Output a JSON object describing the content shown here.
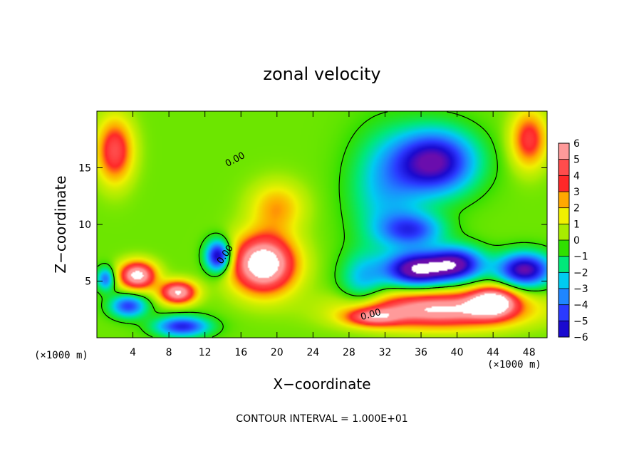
{
  "chart_data": {
    "type": "heatmap",
    "title": "zonal velocity",
    "xlabel": "X−coordinate",
    "ylabel": "Z−coordinate",
    "x_unit_label": "(×1000 m)",
    "y_unit_label": "(×1000 m)",
    "xlim": [
      0,
      50
    ],
    "ylim": [
      0,
      20
    ],
    "x_ticks": [
      4,
      8,
      12,
      16,
      20,
      24,
      28,
      32,
      36,
      40,
      44,
      48
    ],
    "y_ticks": [
      5,
      10,
      15
    ],
    "note": "CONTOUR INTERVAL = 1.000E+01",
    "contour_labels": [
      "0.00",
      "0.00",
      "0.00"
    ],
    "colorbar": {
      "ticks": [
        "6",
        "5",
        "4",
        "3",
        "2",
        "1",
        "0",
        "−1",
        "−2",
        "−3",
        "−4",
        "−5",
        "−6"
      ],
      "vmin": -6,
      "vmax": 6
    },
    "features": [
      {
        "x": 18.5,
        "y": 6.5,
        "value": 8.0,
        "size": [
          3.5,
          2.5
        ]
      },
      {
        "x": 4.5,
        "y": 5.5,
        "value": 7.0,
        "size": [
          2.0,
          1.2
        ]
      },
      {
        "x": 9.0,
        "y": 4.0,
        "value": 6.5,
        "size": [
          2.0,
          1.0
        ]
      },
      {
        "x": 2.0,
        "y": 16.5,
        "value": 4.5,
        "size": [
          2.0,
          2.8
        ]
      },
      {
        "x": 48.0,
        "y": 17.5,
        "value": 4.0,
        "size": [
          2.0,
          2.5
        ]
      },
      {
        "x": 20.0,
        "y": 11.5,
        "value": 2.5,
        "size": [
          3.0,
          2.2
        ]
      },
      {
        "x": 38.0,
        "y": 2.5,
        "value": 6.5,
        "size": [
          9.0,
          1.6
        ]
      },
      {
        "x": 30.5,
        "y": 1.8,
        "value": 4.0,
        "size": [
          3.0,
          0.8
        ]
      },
      {
        "x": 44.0,
        "y": 3.2,
        "value": 6.0,
        "size": [
          2.5,
          1.3
        ]
      },
      {
        "x": 37.5,
        "y": 15.5,
        "value": -6.5,
        "size": [
          4.5,
          2.8
        ]
      },
      {
        "x": 35.5,
        "y": 6.0,
        "value": -7.0,
        "size": [
          3.5,
          1.5
        ]
      },
      {
        "x": 40.0,
        "y": 6.5,
        "value": -6.0,
        "size": [
          3.0,
          1.5
        ]
      },
      {
        "x": 47.5,
        "y": 6.0,
        "value": -6.5,
        "size": [
          3.0,
          1.5
        ]
      },
      {
        "x": 35.0,
        "y": 9.5,
        "value": -4.0,
        "size": [
          3.5,
          1.5
        ]
      },
      {
        "x": 13.5,
        "y": 7.2,
        "value": -6.5,
        "size": [
          1.4,
          1.4
        ]
      },
      {
        "x": 9.5,
        "y": 1.0,
        "value": -5.0,
        "size": [
          3.0,
          0.9
        ]
      },
      {
        "x": 3.5,
        "y": 2.8,
        "value": -4.5,
        "size": [
          2.0,
          1.0
        ]
      },
      {
        "x": 1.0,
        "y": 5.2,
        "value": -4.0,
        "size": [
          1.0,
          1.0
        ]
      },
      {
        "x": 32.0,
        "y": 13.0,
        "value": -2.5,
        "size": [
          4.0,
          5.0
        ]
      },
      {
        "x": 29.5,
        "y": 5.0,
        "value": -2.5,
        "size": [
          2.5,
          2.5
        ]
      }
    ]
  }
}
